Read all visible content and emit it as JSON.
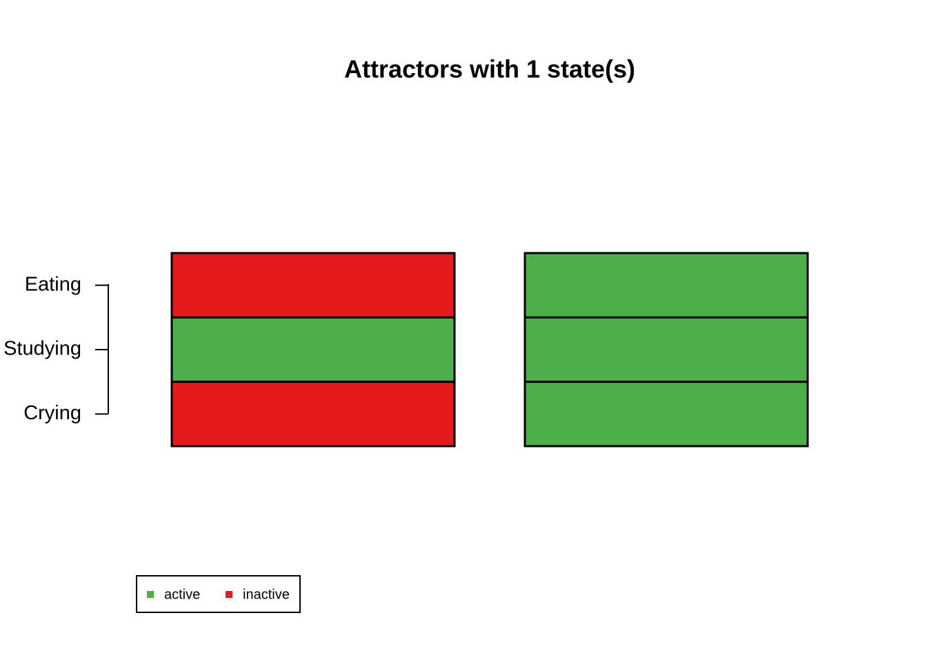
{
  "chart_data": {
    "type": "attractor",
    "title": "Attractors with 1 state(s)",
    "categories": [
      "Eating",
      "Studying",
      "Crying"
    ],
    "attractors": [
      [
        0,
        1,
        0
      ],
      [
        1,
        1,
        1
      ]
    ],
    "legend": [
      {
        "label": "active",
        "value": 1,
        "color": "#4daf4a"
      },
      {
        "label": "inactive",
        "value": 0,
        "color": "#e41a1c"
      }
    ]
  }
}
